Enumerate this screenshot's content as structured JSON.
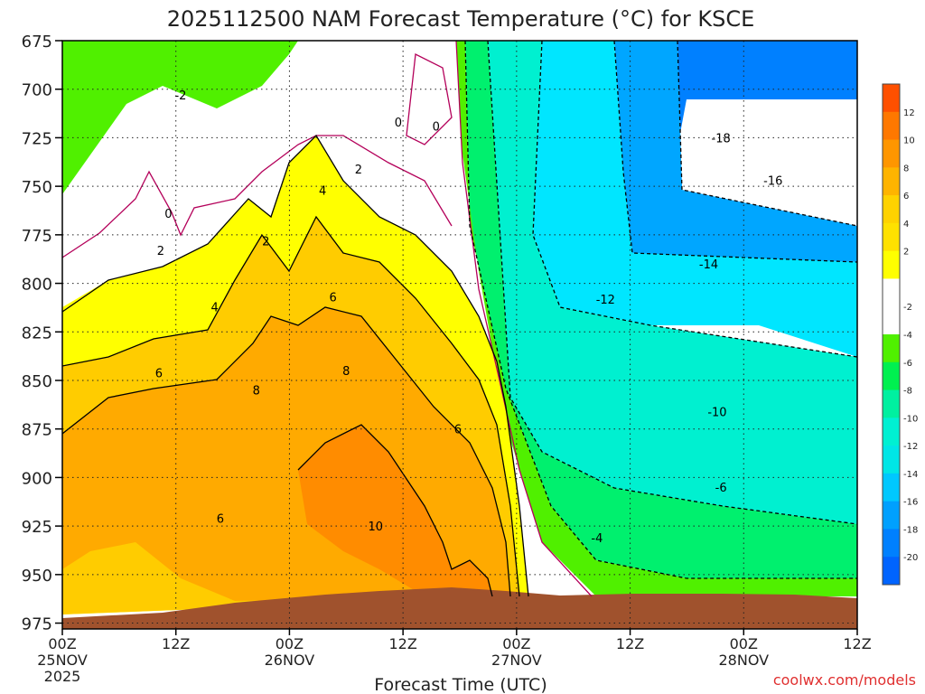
{
  "chart_data": {
    "type": "heatmap",
    "title": "2025112500 NAM Forecast Temperature (°C) for KSCE",
    "xlabel": "Forecast Time (UTC)",
    "ylabel": "",
    "watermark": "coolwx.com/models",
    "x_ticks": [
      {
        "hours": 0,
        "label": "00Z",
        "sub": "25NOV",
        "year": "2025"
      },
      {
        "hours": 12,
        "label": "12Z"
      },
      {
        "hours": 24,
        "label": "00Z",
        "sub": "26NOV"
      },
      {
        "hours": 36,
        "label": "12Z"
      },
      {
        "hours": 48,
        "label": "00Z",
        "sub": "27NOV"
      },
      {
        "hours": 60,
        "label": "12Z"
      },
      {
        "hours": 72,
        "label": "00Z",
        "sub": "28NOV"
      },
      {
        "hours": 84,
        "label": "12Z"
      }
    ],
    "xlim_hours": [
      0,
      84
    ],
    "y_ticks": [
      675,
      700,
      725,
      750,
      775,
      800,
      825,
      850,
      875,
      900,
      925,
      950,
      975
    ],
    "ylim_hpa": [
      675,
      978
    ],
    "colorbar": {
      "bins": [
        {
          "label": "",
          "color": "#ff5000"
        },
        {
          "label": "12",
          "color": "#ff7800"
        },
        {
          "label": "10",
          "color": "#ff9600"
        },
        {
          "label": "8",
          "color": "#ffb400"
        },
        {
          "label": "6",
          "color": "#ffd200"
        },
        {
          "label": "4",
          "color": "#ffe100"
        },
        {
          "label": "2",
          "color": "#ffff00"
        },
        {
          "label": "",
          "color": "#ffffff"
        },
        {
          "label": "-2",
          "color": "#ffffff"
        },
        {
          "label": "-4",
          "color": "#50f000"
        },
        {
          "label": "-6",
          "color": "#00f050"
        },
        {
          "label": "-8",
          "color": "#00f0a0"
        },
        {
          "label": "-10",
          "color": "#00f0d2"
        },
        {
          "label": "-12",
          "color": "#00e6e6"
        },
        {
          "label": "-14",
          "color": "#00c8ff"
        },
        {
          "label": "-16",
          "color": "#00a0ff"
        },
        {
          "label": "-18",
          "color": "#0080ff"
        },
        {
          "label": "-20",
          "color": "#0064ff"
        }
      ]
    },
    "temperature_bands_c": [
      {
        "range": [
          8,
          12
        ],
        "color": "#ff8c00"
      },
      {
        "range": [
          6,
          8
        ],
        "color": "#ffaa00"
      },
      {
        "range": [
          4,
          6
        ],
        "color": "#ffcc00"
      },
      {
        "range": [
          2,
          4
        ],
        "color": "#ffff00"
      },
      {
        "range": [
          -2,
          2
        ],
        "color": "#ffffff"
      },
      {
        "range": [
          -4,
          -2
        ],
        "color": "#50f000"
      },
      {
        "range": [
          -6,
          -4
        ],
        "color": "#00f06e"
      },
      {
        "range": [
          -10,
          -6
        ],
        "color": "#00f0d0"
      },
      {
        "range": [
          -14,
          -10
        ],
        "color": "#00e6ff"
      },
      {
        "range": [
          -18,
          -14
        ],
        "color": "#00a6ff"
      },
      {
        "range": [
          -22,
          -18
        ],
        "color": "#0080ff"
      }
    ],
    "contour_labels": [
      {
        "text": "-2",
        "hours": 12.5,
        "hpa": 703
      },
      {
        "text": "0",
        "hours": 11.2,
        "hpa": 764
      },
      {
        "text": "2",
        "hours": 10.4,
        "hpa": 783
      },
      {
        "text": "0",
        "hours": 35.5,
        "hpa": 717
      },
      {
        "text": "0",
        "hours": 39.5,
        "hpa": 719
      },
      {
        "text": "2",
        "hours": 31.3,
        "hpa": 741
      },
      {
        "text": "4",
        "hours": 27.5,
        "hpa": 752
      },
      {
        "text": "2",
        "hours": 21.5,
        "hpa": 778
      },
      {
        "text": "4",
        "hours": 16.1,
        "hpa": 812
      },
      {
        "text": "6",
        "hours": 28.6,
        "hpa": 807
      },
      {
        "text": "6",
        "hours": 10.2,
        "hpa": 846
      },
      {
        "text": "8",
        "hours": 30.0,
        "hpa": 845
      },
      {
        "text": "8",
        "hours": 20.5,
        "hpa": 855
      },
      {
        "text": "6",
        "hours": 41.8,
        "hpa": 875
      },
      {
        "text": "6",
        "hours": 16.7,
        "hpa": 921
      },
      {
        "text": "10",
        "hours": 33.1,
        "hpa": 925
      },
      {
        "text": "-4",
        "hours": 56.5,
        "hpa": 931
      },
      {
        "text": "-6",
        "hours": 69.6,
        "hpa": 905
      },
      {
        "text": "-10",
        "hours": 69.2,
        "hpa": 866
      },
      {
        "text": "-12",
        "hours": 57.4,
        "hpa": 808
      },
      {
        "text": "-14",
        "hours": 68.3,
        "hpa": 790
      },
      {
        "text": "-16",
        "hours": 75.1,
        "hpa": 747
      },
      {
        "text": "-18",
        "hours": 69.6,
        "hpa": 725
      }
    ]
  }
}
